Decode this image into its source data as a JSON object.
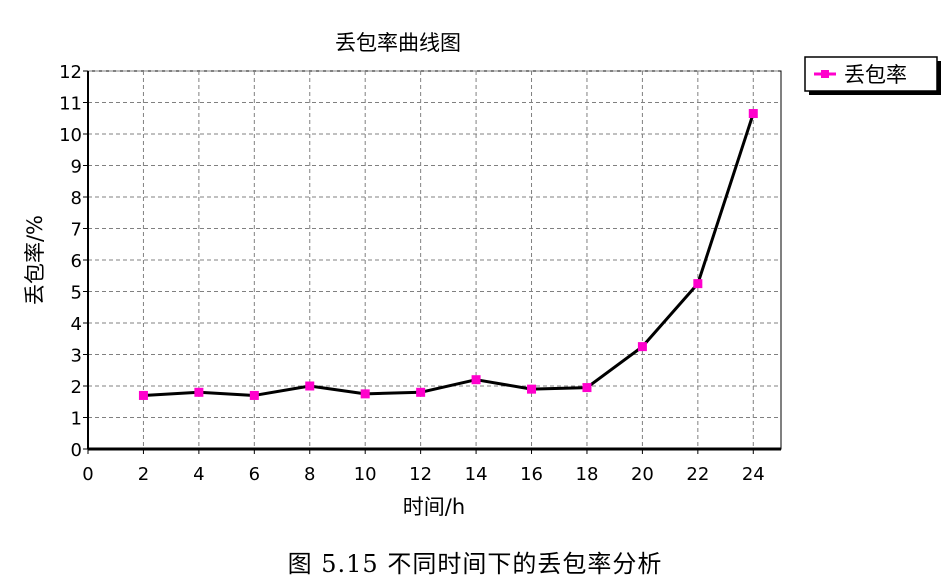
{
  "chart_data": {
    "type": "line",
    "title": "丢包率曲线图",
    "xlabel": "时间/h",
    "ylabel": "丢包率/%",
    "xlim": [
      0,
      25
    ],
    "ylim": [
      0,
      12
    ],
    "xticks": [
      0,
      2,
      4,
      6,
      8,
      10,
      12,
      14,
      16,
      18,
      20,
      22,
      24
    ],
    "yticks": [
      0,
      1,
      2,
      3,
      4,
      5,
      6,
      7,
      8,
      9,
      10,
      11,
      12
    ],
    "grid": true,
    "legend_position": "top-right",
    "series": [
      {
        "name": "丢包率",
        "line_color": "#000000",
        "marker_color": "#FF00CC",
        "x": [
          2,
          4,
          6,
          8,
          10,
          12,
          14,
          16,
          18,
          20,
          22,
          24
        ],
        "y": [
          1.7,
          1.8,
          1.7,
          2.0,
          1.75,
          1.8,
          2.2,
          1.9,
          1.95,
          3.25,
          5.25,
          10.65
        ]
      }
    ]
  },
  "caption": "图 5.15 不同时间下的丢包率分析"
}
